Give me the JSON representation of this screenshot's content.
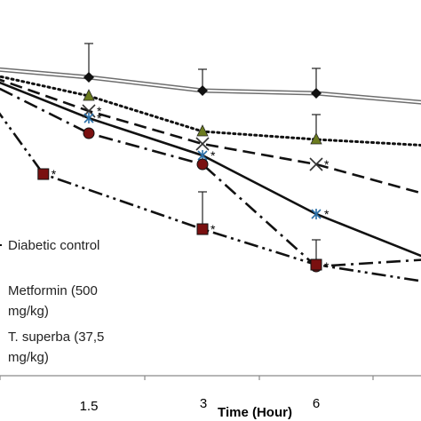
{
  "chart_data": {
    "type": "line",
    "x_ticks": [
      "1.5",
      "3",
      "6"
    ],
    "xlabel": "Time (Hour)",
    "sig_marker": "*",
    "series": [
      {
        "name": "Diabetic control",
        "style": "double",
        "marker": "diamond",
        "color": "#222222",
        "points": [
          {
            "x": 0,
            "y": 76
          },
          {
            "x": 1,
            "y": 87
          },
          {
            "x": 2,
            "y": 102
          },
          {
            "x": 3,
            "y": 105
          },
          {
            "x": 4,
            "y": 116
          }
        ],
        "error": [
          null,
          38,
          24,
          28,
          null
        ],
        "sig": [
          false,
          false,
          false,
          false,
          false
        ]
      },
      {
        "series_key": "a",
        "style": "dotted",
        "marker": "triangle",
        "color": "#6b7b1e",
        "points": [
          {
            "x": 0,
            "y": 80
          },
          {
            "x": 1,
            "y": 108
          },
          {
            "x": 2,
            "y": 148
          },
          {
            "x": 3,
            "y": 157
          },
          {
            "x": 4,
            "y": 164
          }
        ],
        "error": [
          null,
          null,
          null,
          28,
          null
        ],
        "sig": [
          false,
          false,
          false,
          false,
          false
        ]
      },
      {
        "series_key": "b",
        "style": "dashed",
        "marker": "x",
        "color": "#222222",
        "points": [
          {
            "x": 0,
            "y": 80
          },
          {
            "x": 1,
            "y": 125
          },
          {
            "x": 2,
            "y": 162
          },
          {
            "x": 3,
            "y": 185
          },
          {
            "x": 4,
            "y": 220
          }
        ],
        "error": [
          null,
          null,
          null,
          null,
          null
        ],
        "sig": [
          false,
          true,
          false,
          true,
          false
        ]
      },
      {
        "series_key": "c",
        "style": "solid",
        "marker": "asterisk",
        "color": "#2a6fa8",
        "points": [
          {
            "x": 0,
            "y": 82
          },
          {
            "x": 1,
            "y": 133
          },
          {
            "x": 2,
            "y": 175
          },
          {
            "x": 3,
            "y": 241
          },
          {
            "x": 4,
            "y": 292
          }
        ],
        "error": [
          null,
          null,
          null,
          null,
          null
        ],
        "sig": [
          false,
          true,
          true,
          true,
          false
        ]
      },
      {
        "name": "Metformin (500 mg/kg)",
        "style": "dash-dot",
        "marker": "circle",
        "color": "#7a1010",
        "points": [
          {
            "x": 0,
            "y": 86
          },
          {
            "x": 1,
            "y": 150
          },
          {
            "x": 2,
            "y": 185
          },
          {
            "x": 3,
            "y": 300
          },
          {
            "x": 4,
            "y": 292
          }
        ],
        "error": [
          null,
          null,
          null,
          30,
          null
        ],
        "sig": [
          false,
          false,
          false,
          true,
          false
        ]
      },
      {
        "name": "T. superba (37,5 mg/kg)",
        "style": "dash-dot-dot",
        "marker": "square",
        "color": "#7a1010",
        "points": [
          {
            "x": 0,
            "y": 90
          },
          {
            "x": 0.6,
            "y": 196
          },
          {
            "x": 2,
            "y": 258
          },
          {
            "x": 3,
            "y": 298
          },
          {
            "x": 4,
            "y": 318
          }
        ],
        "error": [
          null,
          null,
          42,
          null,
          null
        ],
        "sig": [
          false,
          true,
          true,
          false,
          false
        ]
      }
    ],
    "legend": {
      "items": [
        "Diabetic control",
        "Metformin (500",
        "mg/kg)",
        "T. superba (37,5",
        "mg/kg)"
      ],
      "placement": "bottom-left"
    }
  }
}
